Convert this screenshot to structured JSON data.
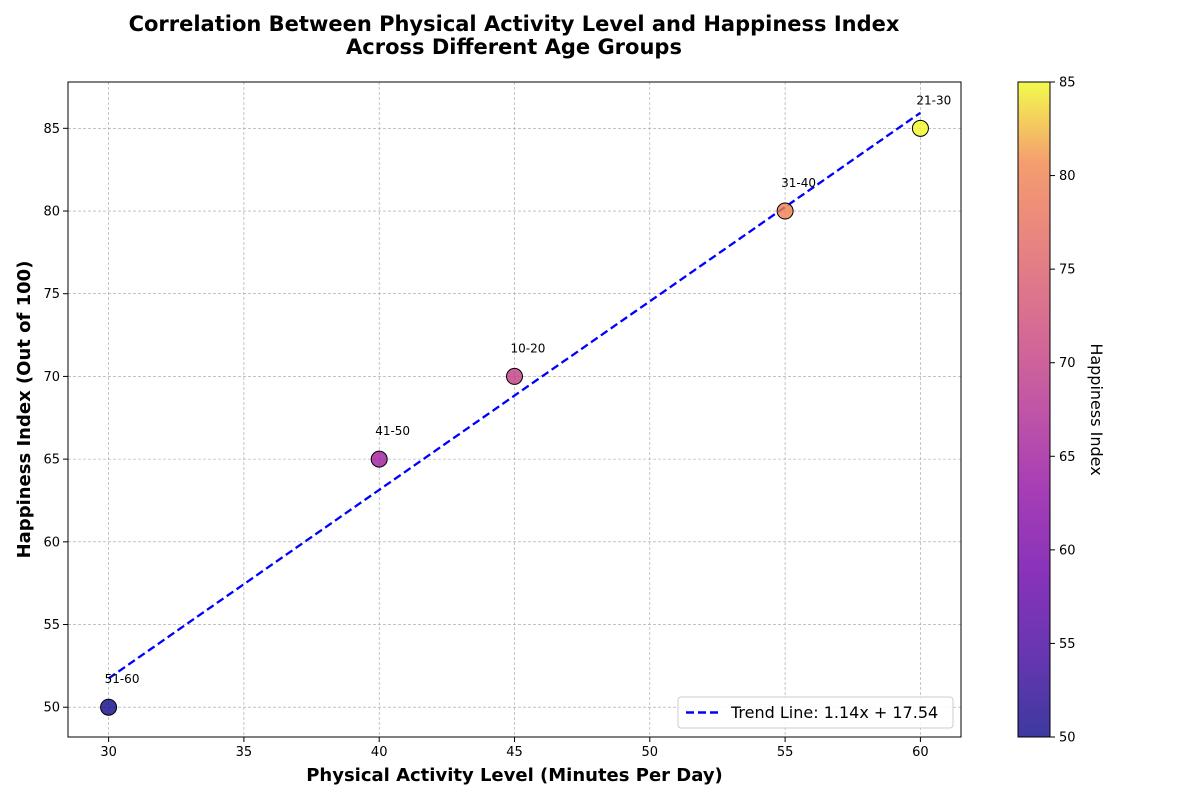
{
  "chart_data": {
    "type": "scatter",
    "title_lines": [
      "Correlation Between Physical Activity Level and Happiness Index",
      "Across Different Age Groups"
    ],
    "xlabel": "Physical Activity Level (Minutes Per Day)",
    "ylabel": "Happiness Index (Out of 100)",
    "xlim": [
      28.5,
      61.5
    ],
    "ylim": [
      48.2,
      87.8
    ],
    "xticks": [
      30,
      35,
      40,
      45,
      50,
      55,
      60
    ],
    "yticks": [
      50,
      55,
      60,
      65,
      70,
      75,
      80,
      85
    ],
    "grid": true,
    "points": [
      {
        "label": "10-20",
        "x": 45,
        "y": 70
      },
      {
        "label": "21-30",
        "x": 60,
        "y": 85
      },
      {
        "label": "31-40",
        "x": 55,
        "y": 80
      },
      {
        "label": "41-50",
        "x": 40,
        "y": 65
      },
      {
        "label": "51-60",
        "x": 30,
        "y": 50
      }
    ],
    "trend_line": {
      "label": "Trend Line: 1.14x + 17.54",
      "slope": 1.14,
      "intercept": 17.54,
      "x_range": [
        30,
        60
      ],
      "color": "#0000ff",
      "style": "dashed"
    },
    "legend_position": "lower-right",
    "colorbar": {
      "label": "Happiness Index",
      "colormap": "plasma",
      "range": [
        50,
        85
      ],
      "ticks": [
        50,
        55,
        60,
        65,
        70,
        75,
        80,
        85
      ]
    }
  }
}
